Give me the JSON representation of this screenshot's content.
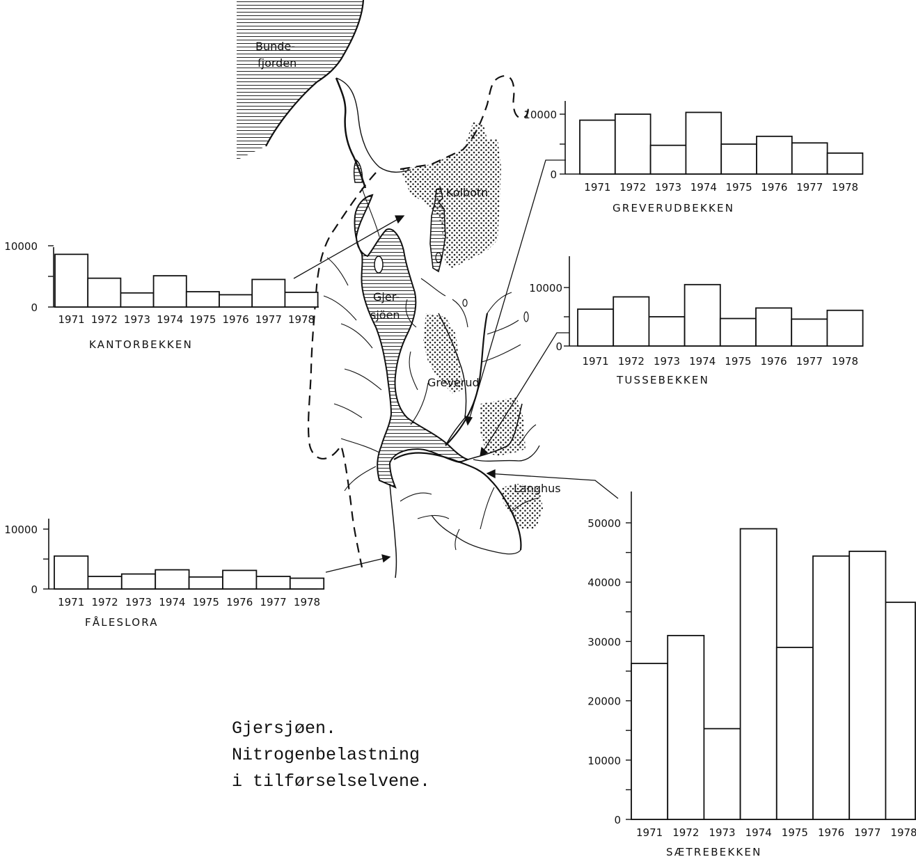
{
  "map": {
    "labels": {
      "bundefjorden_1": "Bunde-",
      "bundefjorden_2": "fjorden",
      "kolbotn": "Kolbotn",
      "gjersjoen_1": "Gjer-",
      "gjersjoen_2": "sjöen",
      "greverud": "Greverud",
      "langhus": "Langhus"
    }
  },
  "caption": {
    "line1": "Gjersjøen.",
    "line2": "Nitrogenbelastning",
    "line3": "i tilførselselvene."
  },
  "chart_data": [
    {
      "type": "bar",
      "title": "KANTORBEKKEN",
      "categories": [
        "1971",
        "1972",
        "1973",
        "1974",
        "1975",
        "1976",
        "1977",
        "1978"
      ],
      "values": [
        8600,
        4700,
        2300,
        5100,
        2500,
        2000,
        4500,
        2400
      ],
      "yticks": [
        "0",
        "10000"
      ],
      "ylim": [
        0,
        10000
      ]
    },
    {
      "type": "bar",
      "title": "GREVERUDBEKKEN",
      "categories": [
        "1971",
        "1972",
        "1973",
        "1974",
        "1975",
        "1976",
        "1977",
        "1978"
      ],
      "values": [
        9000,
        10000,
        4800,
        10300,
        5000,
        6300,
        5200,
        3500
      ],
      "yticks": [
        "0",
        "10000"
      ],
      "ylim": [
        0,
        10000
      ]
    },
    {
      "type": "bar",
      "title": "TUSSEBEKKEN",
      "categories": [
        "1971",
        "1972",
        "1973",
        "1974",
        "1975",
        "1976",
        "1977",
        "1978"
      ],
      "values": [
        6300,
        8400,
        5000,
        10500,
        4700,
        6500,
        4600,
        6100
      ],
      "yticks": [
        "0",
        "10000"
      ],
      "ylim": [
        0,
        10000
      ]
    },
    {
      "type": "bar",
      "title": "FÅLESLORA",
      "categories": [
        "1971",
        "1972",
        "1973",
        "1974",
        "1975",
        "1976",
        "1977",
        "1978"
      ],
      "values": [
        5500,
        2100,
        2500,
        3200,
        2000,
        3100,
        2100,
        1800
      ],
      "yticks": [
        "0",
        "10000"
      ],
      "ylim": [
        0,
        10000
      ]
    },
    {
      "type": "bar",
      "title": "SÆTREBEKKEN",
      "categories": [
        "1971",
        "1972",
        "1973",
        "1974",
        "1975",
        "1976",
        "1977",
        "1978"
      ],
      "values": [
        26300,
        31000,
        15300,
        49000,
        29000,
        44400,
        45200,
        36600
      ],
      "yticks": [
        "0",
        "10000",
        "20000",
        "30000",
        "40000",
        "50000"
      ],
      "ylim": [
        0,
        50000
      ]
    }
  ]
}
